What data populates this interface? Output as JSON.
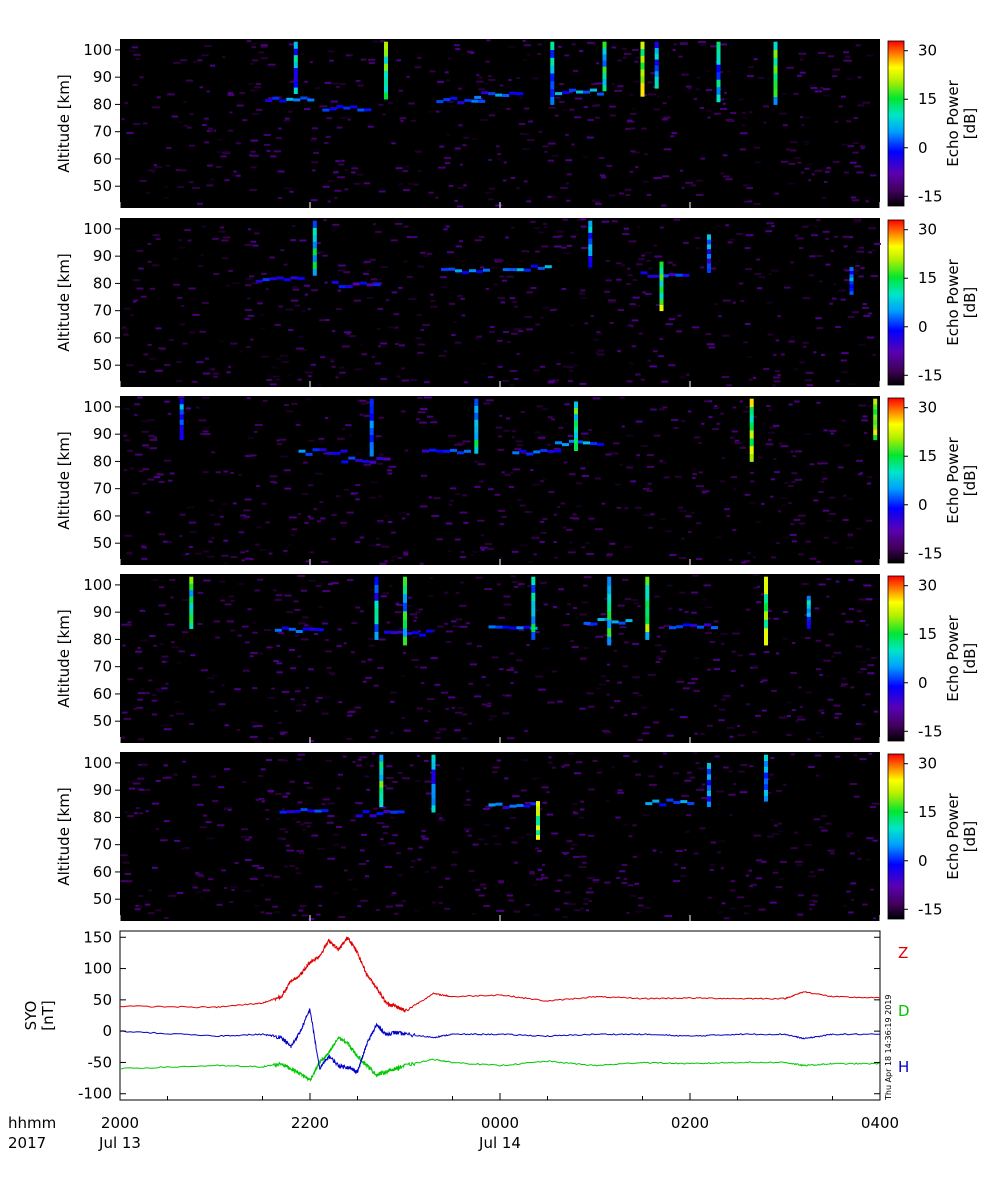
{
  "chart_data": [
    {
      "type": "heatmap",
      "panel": 1,
      "ylabel": "Altitude [km]",
      "ylim": [
        42,
        104
      ],
      "yticks": [
        50,
        60,
        70,
        80,
        90,
        100
      ],
      "colorbar_label": [
        "Echo Power",
        "[dB]"
      ],
      "colorbar_range": [
        -18,
        33
      ],
      "colorbar_ticks": [
        -15,
        0,
        15,
        30
      ],
      "echo_layers": [
        {
          "x": 21.75,
          "alt": 82,
          "dB": 5
        },
        {
          "x": 22.35,
          "alt": 79,
          "dB": 0
        },
        {
          "x": 23.55,
          "alt": 82,
          "dB": 2
        },
        {
          "x": 23.95,
          "alt": 84,
          "dB": 4
        },
        {
          "x": 24.8,
          "alt": 85,
          "dB": 6
        }
      ],
      "echo_columns": [
        {
          "x": 21.85,
          "alt_min": 84,
          "alt_max": 103,
          "dB": 10
        },
        {
          "x": 22.8,
          "alt_min": 82,
          "alt_max": 103,
          "dB": 20
        },
        {
          "x": 24.55,
          "alt_min": 80,
          "alt_max": 103,
          "dB": 12
        },
        {
          "x": 25.1,
          "alt_min": 85,
          "alt_max": 103,
          "dB": 15
        },
        {
          "x": 25.5,
          "alt_min": 83,
          "alt_max": 103,
          "dB": 25
        },
        {
          "x": 25.65,
          "alt_min": 86,
          "alt_max": 103,
          "dB": 10
        },
        {
          "x": 26.3,
          "alt_min": 81,
          "alt_max": 103,
          "dB": 12
        },
        {
          "x": 26.9,
          "alt_min": 80,
          "alt_max": 103,
          "dB": 18
        }
      ]
    },
    {
      "type": "heatmap",
      "panel": 2,
      "ylabel": "Altitude [km]",
      "ylim": [
        42,
        104
      ],
      "yticks": [
        50,
        60,
        70,
        80,
        90,
        100
      ],
      "colorbar_label": [
        "Echo Power",
        "[dB]"
      ],
      "colorbar_range": [
        -18,
        33
      ],
      "colorbar_ticks": [
        -15,
        0,
        15,
        30
      ],
      "echo_layers": [
        {
          "x": 21.65,
          "alt": 82,
          "dB": 3
        },
        {
          "x": 22.45,
          "alt": 80,
          "dB": 0
        },
        {
          "x": 23.6,
          "alt": 85,
          "dB": 4
        },
        {
          "x": 24.25,
          "alt": 86,
          "dB": 6
        },
        {
          "x": 25.7,
          "alt": 84,
          "dB": 2
        }
      ],
      "echo_columns": [
        {
          "x": 22.05,
          "alt_min": 83,
          "alt_max": 103,
          "dB": 15
        },
        {
          "x": 24.95,
          "alt_min": 86,
          "alt_max": 103,
          "dB": 10
        },
        {
          "x": 25.7,
          "alt_min": 70,
          "alt_max": 88,
          "dB": 22
        },
        {
          "x": 26.2,
          "alt_min": 84,
          "alt_max": 98,
          "dB": 8
        },
        {
          "x": 27.7,
          "alt_min": 76,
          "alt_max": 86,
          "dB": 10
        }
      ]
    },
    {
      "type": "heatmap",
      "panel": 3,
      "ylabel": "Altitude [km]",
      "ylim": [
        42,
        104
      ],
      "yticks": [
        50,
        60,
        70,
        80,
        90,
        100
      ],
      "colorbar_label": [
        "Echo Power",
        "[dB]"
      ],
      "colorbar_range": [
        -18,
        33
      ],
      "colorbar_ticks": [
        -15,
        0,
        15,
        30
      ],
      "echo_layers": [
        {
          "x": 22.1,
          "alt": 84,
          "dB": 3
        },
        {
          "x": 22.55,
          "alt": 81,
          "dB": 0
        },
        {
          "x": 23.4,
          "alt": 84,
          "dB": 2
        },
        {
          "x": 24.35,
          "alt": 84,
          "dB": 4
        },
        {
          "x": 24.8,
          "alt": 87,
          "dB": 6
        }
      ],
      "echo_columns": [
        {
          "x": 20.65,
          "alt_min": 88,
          "alt_max": 103,
          "dB": 10
        },
        {
          "x": 22.65,
          "alt_min": 82,
          "alt_max": 103,
          "dB": 12
        },
        {
          "x": 23.75,
          "alt_min": 83,
          "alt_max": 103,
          "dB": 14
        },
        {
          "x": 24.8,
          "alt_min": 84,
          "alt_max": 102,
          "dB": 18
        },
        {
          "x": 26.65,
          "alt_min": 80,
          "alt_max": 103,
          "dB": 24
        },
        {
          "x": 27.95,
          "alt_min": 88,
          "alt_max": 103,
          "dB": 28
        }
      ]
    },
    {
      "type": "heatmap",
      "panel": 4,
      "ylabel": "Altitude [km]",
      "ylim": [
        42,
        104
      ],
      "yticks": [
        50,
        60,
        70,
        80,
        90,
        100
      ],
      "colorbar_label": [
        "Echo Power",
        "[dB]"
      ],
      "colorbar_range": [
        -18,
        33
      ],
      "colorbar_ticks": [
        -15,
        0,
        15,
        30
      ],
      "echo_layers": [
        {
          "x": 21.85,
          "alt": 84,
          "dB": 3
        },
        {
          "x": 23.0,
          "alt": 83,
          "dB": 2
        },
        {
          "x": 24.1,
          "alt": 85,
          "dB": 4
        },
        {
          "x": 25.1,
          "alt": 87,
          "dB": 6
        },
        {
          "x": 26.0,
          "alt": 85,
          "dB": 2
        }
      ],
      "echo_columns": [
        {
          "x": 20.75,
          "alt_min": 84,
          "alt_max": 103,
          "dB": 18
        },
        {
          "x": 22.7,
          "alt_min": 80,
          "alt_max": 103,
          "dB": 10
        },
        {
          "x": 23.0,
          "alt_min": 78,
          "alt_max": 103,
          "dB": 15
        },
        {
          "x": 24.35,
          "alt_min": 80,
          "alt_max": 103,
          "dB": 14
        },
        {
          "x": 25.15,
          "alt_min": 78,
          "alt_max": 103,
          "dB": 16
        },
        {
          "x": 25.55,
          "alt_min": 80,
          "alt_max": 103,
          "dB": 20
        },
        {
          "x": 26.8,
          "alt_min": 78,
          "alt_max": 103,
          "dB": 25
        },
        {
          "x": 27.25,
          "alt_min": 84,
          "alt_max": 96,
          "dB": 10
        }
      ]
    },
    {
      "type": "heatmap",
      "panel": 5,
      "ylabel": "Altitude [km]",
      "ylim": [
        42,
        104
      ],
      "yticks": [
        50,
        60,
        70,
        80,
        90,
        100
      ],
      "colorbar_label": [
        "Echo Power",
        "[dB]"
      ],
      "colorbar_range": [
        -18,
        33
      ],
      "colorbar_ticks": [
        -15,
        0,
        15,
        30
      ],
      "echo_layers": [
        {
          "x": 21.9,
          "alt": 83,
          "dB": 3
        },
        {
          "x": 22.7,
          "alt": 82,
          "dB": 0
        },
        {
          "x": 24.1,
          "alt": 85,
          "dB": 3
        },
        {
          "x": 25.75,
          "alt": 86,
          "dB": 5
        }
      ],
      "echo_columns": [
        {
          "x": 22.75,
          "alt_min": 84,
          "alt_max": 103,
          "dB": 18
        },
        {
          "x": 23.3,
          "alt_min": 82,
          "alt_max": 103,
          "dB": 10
        },
        {
          "x": 24.4,
          "alt_min": 72,
          "alt_max": 86,
          "dB": 25
        },
        {
          "x": 26.2,
          "alt_min": 84,
          "alt_max": 100,
          "dB": 8
        },
        {
          "x": 26.8,
          "alt_min": 86,
          "alt_max": 103,
          "dB": 12
        }
      ]
    },
    {
      "type": "line",
      "panel": 6,
      "ylabel": [
        "SYO",
        "[nT]"
      ],
      "ylim": [
        -110,
        160
      ],
      "yticks": [
        -100,
        -50,
        0,
        50,
        100,
        150
      ],
      "x_hours": [
        20,
        21,
        21.5,
        21.7,
        21.8,
        21.9,
        22.0,
        22.1,
        22.2,
        22.3,
        22.4,
        22.5,
        22.6,
        22.7,
        22.8,
        22.9,
        23.0,
        23.3,
        23.5,
        24.0,
        24.5,
        25.0,
        25.5,
        26.0,
        26.5,
        27.0,
        27.2,
        27.5,
        28.0
      ],
      "series": [
        {
          "name": "Z",
          "color": "#e00000",
          "values": [
            40,
            38,
            45,
            55,
            80,
            90,
            110,
            120,
            145,
            130,
            150,
            125,
            90,
            70,
            45,
            40,
            32,
            60,
            55,
            58,
            48,
            55,
            52,
            53,
            52,
            52,
            63,
            55,
            53
          ]
        },
        {
          "name": "D",
          "color": "#00c800",
          "values": [
            -60,
            -55,
            -57,
            -52,
            -60,
            -68,
            -78,
            -50,
            -35,
            -10,
            -20,
            -40,
            -55,
            -70,
            -65,
            -60,
            -55,
            -45,
            -50,
            -55,
            -48,
            -55,
            -50,
            -52,
            -50,
            -50,
            -55,
            -52,
            -52
          ]
        },
        {
          "name": "H",
          "color": "#0000c8",
          "values": [
            0,
            -8,
            -5,
            -10,
            -25,
            0,
            35,
            -60,
            -40,
            -55,
            -58,
            -65,
            -20,
            10,
            -5,
            -2,
            -5,
            -10,
            -5,
            -5,
            -8,
            -5,
            -5,
            -8,
            -5,
            -5,
            -12,
            -5,
            -5
          ]
        }
      ]
    }
  ],
  "xaxis": {
    "range_hours": [
      20,
      28
    ],
    "row_labels": [
      "hhmm",
      "2017"
    ],
    "ticks": [
      {
        "pos": 20,
        "time": "2000",
        "date": "Jul 13"
      },
      {
        "pos": 22,
        "time": "2200",
        "date": ""
      },
      {
        "pos": 24,
        "time": "0000",
        "date": "Jul 14"
      },
      {
        "pos": 26,
        "time": "0200",
        "date": ""
      },
      {
        "pos": 28,
        "time": "0400",
        "date": ""
      }
    ]
  },
  "timestamp": "Thu Apr 18 14:36:19 2019"
}
